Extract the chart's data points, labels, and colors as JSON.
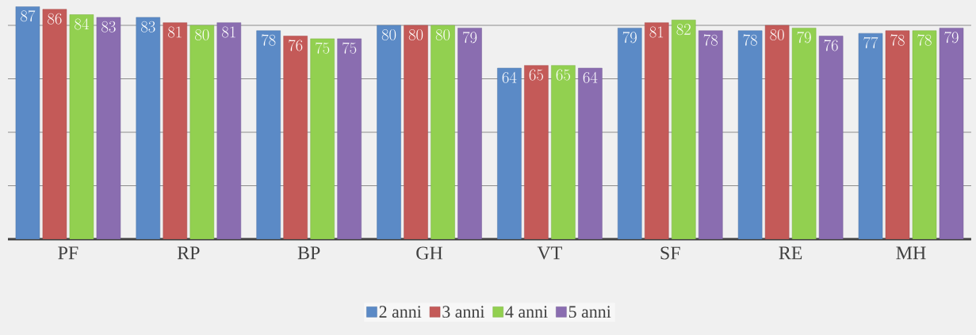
{
  "chart_data": {
    "type": "bar",
    "categories": [
      "PF",
      "RP",
      "BP",
      "GH",
      "VT",
      "SF",
      "RE",
      "MH"
    ],
    "series": [
      {
        "name": "2 anni",
        "color": "#5b8ac6",
        "values": [
          87,
          83,
          78,
          80,
          64,
          79,
          78,
          77
        ]
      },
      {
        "name": "3 anni",
        "color": "#c45a58",
        "values": [
          86,
          81,
          76,
          80,
          65,
          81,
          80,
          78
        ]
      },
      {
        "name": "4 anni",
        "color": "#92d050",
        "values": [
          84,
          80,
          75,
          80,
          65,
          82,
          79,
          78
        ]
      },
      {
        "name": "5 anni",
        "color": "#8a6db0",
        "values": [
          83,
          81,
          75,
          79,
          64,
          78,
          76,
          79
        ]
      }
    ],
    "ylim": [
      0,
      88
    ],
    "yticks": [
      {
        "value": 20,
        "label": null
      },
      {
        "value": 40,
        "label": null
      },
      {
        "value": 60,
        "label": null
      },
      {
        "value": 80,
        "label": null
      }
    ],
    "grid": "y",
    "legend": "bottom",
    "data_labels": true,
    "tick_labels": "x"
  }
}
